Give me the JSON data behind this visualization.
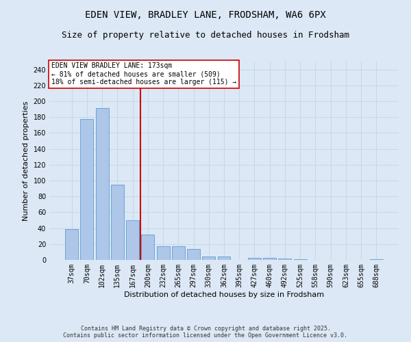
{
  "title_line1": "EDEN VIEW, BRADLEY LANE, FRODSHAM, WA6 6PX",
  "title_line2": "Size of property relative to detached houses in Frodsham",
  "xlabel": "Distribution of detached houses by size in Frodsham",
  "ylabel": "Number of detached properties",
  "categories": [
    "37sqm",
    "70sqm",
    "102sqm",
    "135sqm",
    "167sqm",
    "200sqm",
    "232sqm",
    "265sqm",
    "297sqm",
    "330sqm",
    "362sqm",
    "395sqm",
    "427sqm",
    "460sqm",
    "492sqm",
    "525sqm",
    "558sqm",
    "590sqm",
    "623sqm",
    "655sqm",
    "688sqm"
  ],
  "values": [
    39,
    178,
    191,
    95,
    50,
    32,
    17,
    17,
    14,
    4,
    4,
    0,
    3,
    3,
    2,
    1,
    0,
    0,
    0,
    0,
    1
  ],
  "bar_color": "#aec6e8",
  "bar_edge_color": "#5a9fd4",
  "grid_color": "#c8d8e8",
  "background_color": "#dce8f5",
  "vline_x": 4.5,
  "vline_color": "#cc0000",
  "annotation_text": "EDEN VIEW BRADLEY LANE: 173sqm\n← 81% of detached houses are smaller (509)\n18% of semi-detached houses are larger (115) →",
  "annotation_box_color": "#ffffff",
  "annotation_box_edge": "#cc0000",
  "ylim": [
    0,
    250
  ],
  "yticks": [
    0,
    20,
    40,
    60,
    80,
    100,
    120,
    140,
    160,
    180,
    200,
    220,
    240
  ],
  "footer_text": "Contains HM Land Registry data © Crown copyright and database right 2025.\nContains public sector information licensed under the Open Government Licence v3.0.",
  "title_fontsize": 10,
  "subtitle_fontsize": 9,
  "label_fontsize": 8,
  "tick_fontsize": 7,
  "annotation_fontsize": 7,
  "footer_fontsize": 6
}
